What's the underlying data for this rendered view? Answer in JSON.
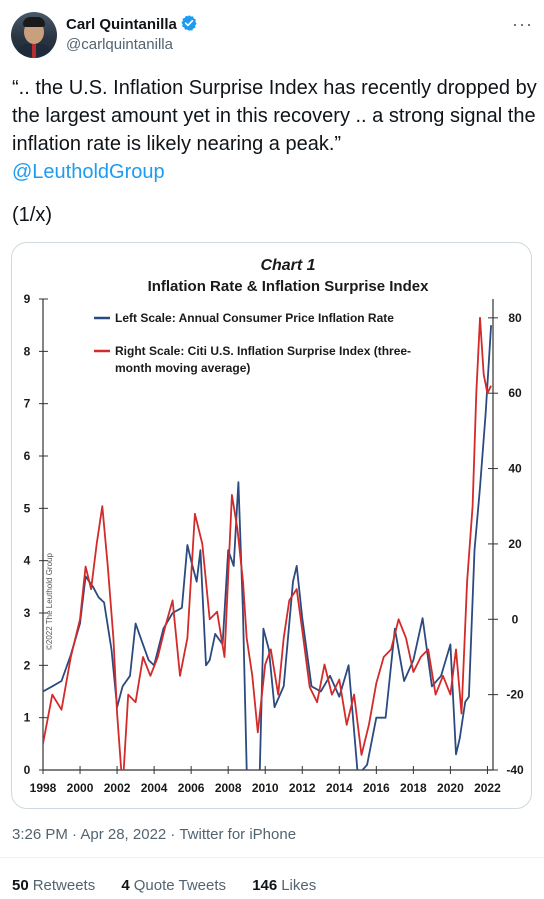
{
  "author": {
    "name": "Carl Quintanilla",
    "handle": "@carlquintanilla"
  },
  "tweet": {
    "text": "“.. the U.S. Inflation Surprise Index has recently dropped by the largest amount yet in this recovery .. a strong signal the inflation rate is likely nearing a peak.”",
    "mention": "@LeutholdGroup",
    "thread_marker": "(1/x)"
  },
  "meta": {
    "timestamp": "3:26 PM · Apr 28, 2022 · Twitter for iPhone"
  },
  "stats": {
    "retweets_count": "50",
    "retweets_label": "Retweets",
    "quotes_count": "4",
    "quotes_label": "Quote Tweets",
    "likes_count": "146",
    "likes_label": "Likes"
  },
  "colors": {
    "link": "#1d9bf0",
    "verified": "#1d9bf0",
    "cpi_series": "#2b4a80",
    "surprise_series": "#d32a2a"
  },
  "icons": [
    "verified-badge-icon",
    "more-options-icon"
  ],
  "chart_data": {
    "type": "line",
    "title": "Chart 1",
    "subtitle": "Inflation Rate & Inflation Surprise Index",
    "watermark": "©2022 The Leuthold Group",
    "x_ticks": [
      "1998",
      "2000",
      "2002",
      "2004",
      "2006",
      "2008",
      "2010",
      "2012",
      "2014",
      "2016",
      "2018",
      "2020",
      "2022"
    ],
    "left_ticks": [
      "0",
      "1",
      "2",
      "3",
      "4",
      "5",
      "6",
      "7",
      "8",
      "9"
    ],
    "right_ticks": [
      "-40",
      "-20",
      "0",
      "20",
      "40",
      "60",
      "80"
    ],
    "xlim": [
      1998,
      2022.3
    ],
    "ylim_left": [
      0,
      9
    ],
    "ylim_right": [
      -40,
      85
    ],
    "grid": false,
    "legend_position": "top-left inside plot",
    "series": [
      {
        "name": "Left Scale: Annual Consumer Price Inflation Rate",
        "axis": "left",
        "x": [
          1998.0,
          1998.5,
          1999.0,
          1999.5,
          2000.0,
          2000.3,
          2000.7,
          2001.0,
          2001.3,
          2001.7,
          2002.0,
          2002.3,
          2002.7,
          2003.0,
          2003.3,
          2003.7,
          2004.0,
          2004.5,
          2005.0,
          2005.5,
          2005.8,
          2006.0,
          2006.3,
          2006.5,
          2006.8,
          2007.0,
          2007.3,
          2007.7,
          2008.0,
          2008.3,
          2008.55,
          2008.8,
          2009.0,
          2009.3,
          2009.6,
          2009.9,
          2010.2,
          2010.5,
          2011.0,
          2011.5,
          2011.7,
          2012.0,
          2012.5,
          2013.0,
          2013.5,
          2014.0,
          2014.5,
          2015.0,
          2015.5,
          2016.0,
          2016.5,
          2017.0,
          2017.5,
          2018.0,
          2018.5,
          2019.0,
          2019.5,
          2020.0,
          2020.3,
          2020.5,
          2020.8,
          2021.0,
          2021.3,
          2021.6,
          2021.9,
          2022.2
        ],
        "y": [
          1.5,
          1.6,
          1.7,
          2.2,
          2.8,
          3.7,
          3.5,
          3.3,
          3.2,
          2.3,
          1.2,
          1.6,
          1.8,
          2.8,
          2.5,
          2.1,
          2.0,
          2.7,
          3.0,
          3.1,
          4.3,
          4.0,
          3.6,
          4.2,
          2.0,
          2.1,
          2.6,
          2.4,
          4.2,
          3.9,
          5.5,
          3.0,
          0.0,
          -1.0,
          -1.5,
          2.7,
          2.3,
          1.2,
          1.6,
          3.6,
          3.9,
          2.9,
          1.6,
          1.5,
          1.8,
          1.4,
          2.0,
          -0.1,
          0.1,
          1.0,
          1.0,
          2.7,
          1.7,
          2.1,
          2.9,
          1.6,
          1.8,
          2.4,
          0.3,
          0.6,
          1.3,
          1.4,
          4.2,
          5.4,
          6.8,
          8.5
        ]
      },
      {
        "name": "Right Scale: Citi U.S. Inflation Surprise Index (three-month moving average)",
        "axis": "right",
        "x": [
          1998.0,
          1998.5,
          1999.0,
          1999.5,
          2000.0,
          2000.3,
          2000.6,
          2000.9,
          2001.2,
          2001.5,
          2001.8,
          2002.0,
          2002.3,
          2002.6,
          2003.0,
          2003.4,
          2003.8,
          2004.2,
          2004.6,
          2005.0,
          2005.4,
          2005.8,
          2006.2,
          2006.6,
          2007.0,
          2007.4,
          2007.8,
          2008.2,
          2008.5,
          2008.8,
          2009.0,
          2009.3,
          2009.6,
          2010.0,
          2010.3,
          2010.7,
          2011.0,
          2011.3,
          2011.7,
          2012.0,
          2012.4,
          2012.8,
          2013.2,
          2013.6,
          2014.0,
          2014.4,
          2014.8,
          2015.2,
          2015.6,
          2016.0,
          2016.4,
          2016.8,
          2017.2,
          2017.6,
          2018.0,
          2018.4,
          2018.8,
          2019.2,
          2019.6,
          2020.0,
          2020.3,
          2020.6,
          2020.9,
          2021.2,
          2021.4,
          2021.6,
          2021.8,
          2022.0,
          2022.2
        ],
        "y": [
          -33,
          -20,
          -24,
          -10,
          0,
          14,
          8,
          20,
          30,
          14,
          -5,
          -25,
          -45,
          -20,
          -22,
          -10,
          -15,
          -10,
          -2,
          5,
          -15,
          -5,
          28,
          20,
          0,
          2,
          -10,
          33,
          24,
          10,
          -5,
          -15,
          -30,
          -12,
          -8,
          -20,
          -5,
          5,
          8,
          -3,
          -18,
          -22,
          -12,
          -20,
          -16,
          -28,
          -20,
          -36,
          -28,
          -17,
          -10,
          -8,
          0,
          -5,
          -14,
          -10,
          -8,
          -20,
          -15,
          -20,
          -8,
          -25,
          10,
          30,
          60,
          80,
          65,
          60,
          62
        ]
      }
    ]
  }
}
